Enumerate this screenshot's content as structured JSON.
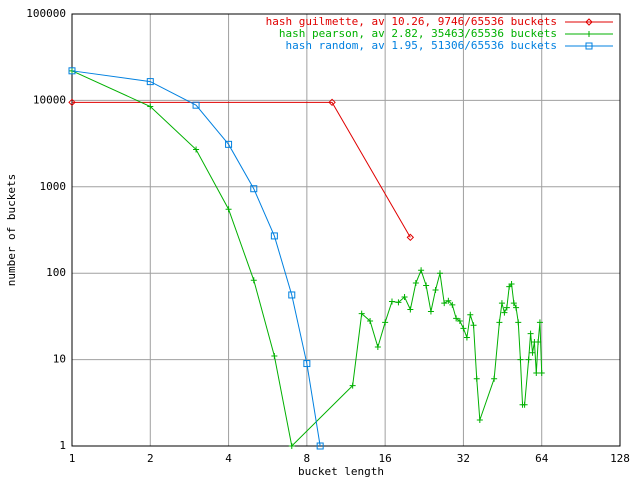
{
  "chart_data": {
    "type": "line",
    "xlabel": "bucket length",
    "ylabel": "number of buckets",
    "xscale": "log",
    "yscale": "log",
    "xlim": [
      1,
      128
    ],
    "ylim": [
      1,
      100000
    ],
    "xticks": [
      1,
      2,
      4,
      8,
      16,
      32,
      64,
      128
    ],
    "yticks": [
      1,
      10,
      100,
      1000,
      10000,
      100000
    ],
    "grid": true,
    "legend": "top-right",
    "series": [
      {
        "name": "hash guilmette, av 10.26, 9746/65536 buckets",
        "color": "#e00000",
        "marker": "diamond",
        "x": [
          1,
          10,
          20
        ],
        "values": [
          9500,
          9500,
          260
        ]
      },
      {
        "name": "hash pearson, av 2.82, 35463/65536 buckets",
        "color": "#00b000",
        "marker": "plus",
        "x": [
          1,
          2,
          3,
          4,
          5,
          6,
          7,
          12,
          13,
          14,
          15,
          16,
          17,
          18,
          19,
          20,
          21,
          22,
          23,
          24,
          25,
          26,
          27,
          28,
          29,
          30,
          31,
          32,
          33,
          34,
          35,
          36,
          37,
          42,
          44,
          45,
          46,
          47,
          48,
          49,
          50,
          51,
          52,
          53,
          54,
          55,
          57,
          58,
          59,
          60,
          61,
          62,
          63,
          64
        ],
        "values": [
          22000,
          8500,
          2700,
          550,
          83,
          11,
          1,
          5,
          34,
          28,
          14,
          27,
          47,
          46,
          53,
          38,
          77,
          108,
          72,
          36,
          64,
          100,
          45,
          48,
          43,
          30,
          28,
          23,
          18,
          33,
          25,
          6,
          2,
          6,
          27,
          45,
          35,
          40,
          70,
          75,
          45,
          40,
          27,
          10,
          3,
          3,
          10,
          20,
          12,
          16,
          7,
          16,
          27,
          7
        ]
      },
      {
        "name": "hash random, av 1.95, 51306/65536 buckets",
        "color": "#0080e0",
        "marker": "square",
        "x": [
          1,
          2,
          3,
          4,
          5,
          6,
          7,
          8,
          9
        ],
        "values": [
          22000,
          16500,
          8800,
          3100,
          950,
          270,
          56,
          9,
          1
        ]
      }
    ]
  }
}
